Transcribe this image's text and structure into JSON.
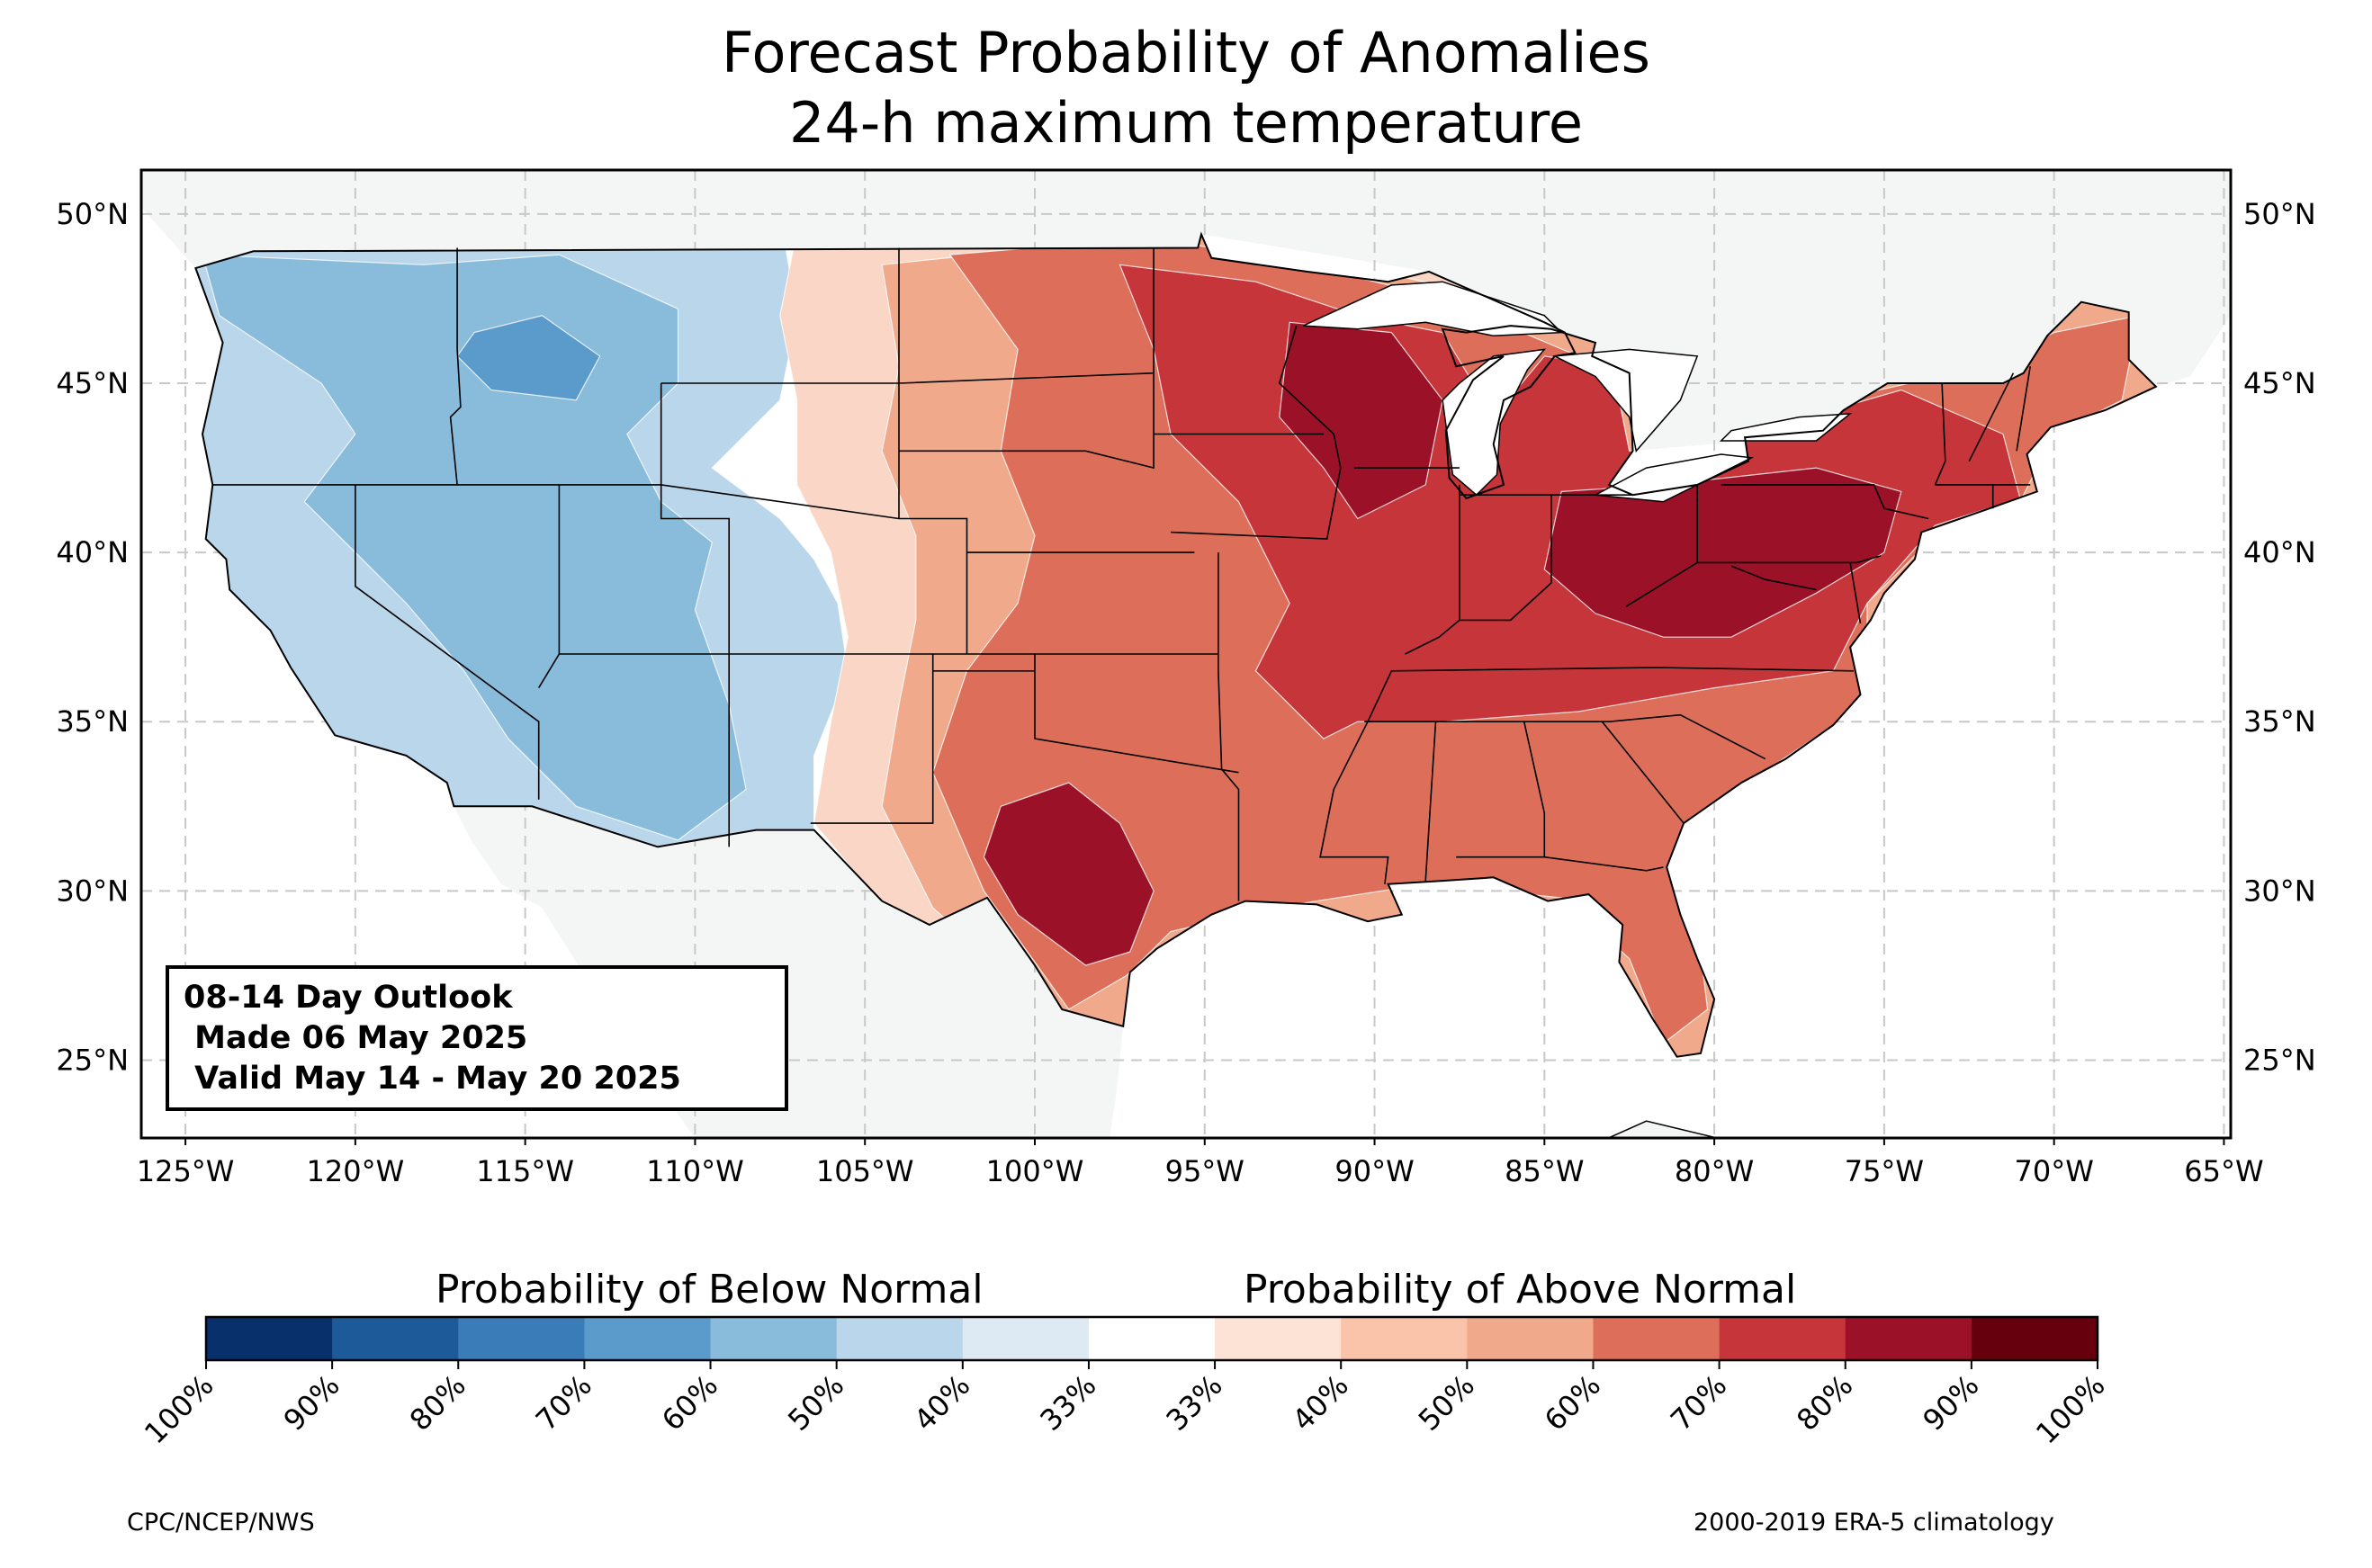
{
  "title": {
    "line1": "Forecast Probability of Anomalies",
    "line2": "24-h maximum temperature"
  },
  "map": {
    "lon_range": [
      -126.3,
      -64.8
    ],
    "lat_range": [
      22.7,
      51.3
    ],
    "lon_ticks": [
      -125,
      -120,
      -115,
      -110,
      -105,
      -100,
      -95,
      -90,
      -85,
      -80,
      -75,
      -70,
      -65
    ],
    "lon_tick_labels": [
      "125°W",
      "120°W",
      "115°W",
      "110°W",
      "105°W",
      "100°W",
      "95°W",
      "90°W",
      "85°W",
      "80°W",
      "75°W",
      "70°W",
      "65°W"
    ],
    "lat_ticks": [
      50,
      45,
      40,
      35,
      30,
      25
    ],
    "lat_tick_labels": [
      "50°N",
      "45°N",
      "40°N",
      "35°N",
      "30°N",
      "25°N"
    ],
    "gridlines": "dashed",
    "colors": {
      "land_outside": "#f4f6f5",
      "ocean": "#ffffff",
      "below_50": "#b9d6ea",
      "below_60": "#89bbdb",
      "below_70": "#5a9bcb",
      "above_40": "#f9d6c5",
      "above_50": "#f0a98b",
      "above_60": "#dd6f5a",
      "above_70": "#c5353a",
      "above_80": "#9b1228"
    },
    "regions": [
      {
        "name": "below-west",
        "category": "below_50"
      },
      {
        "name": "below-intermountain",
        "category": "below_60"
      },
      {
        "name": "below-core-arizona",
        "category": "below_70"
      },
      {
        "name": "above-plains-edge",
        "category": "above_40"
      },
      {
        "name": "above-plains",
        "category": "above_50"
      },
      {
        "name": "above-central-east",
        "category": "above_60"
      },
      {
        "name": "above-core",
        "category": "above_70"
      },
      {
        "name": "above-max-texas",
        "category": "above_80"
      },
      {
        "name": "above-max-midwest",
        "category": "above_80"
      },
      {
        "name": "above-max-ohio-valley",
        "category": "above_80"
      }
    ]
  },
  "infobox": {
    "line1": "08-14 Day Outlook",
    "line2": " Made 06 May 2025",
    "line3": " Valid May 14 - May 20 2025"
  },
  "colorbar": {
    "below_title": "Probability of Below Normal",
    "above_title": "Probability of Above Normal",
    "colors": [
      "#08306b",
      "#1c5a99",
      "#3a7cb8",
      "#5a9bcb",
      "#89bbdb",
      "#b9d6ea",
      "#dde9f3",
      "#ffffff",
      "#fde3d6",
      "#f9c4aa",
      "#f0a98b",
      "#dd6f5a",
      "#c5353a",
      "#9b1228",
      "#67000d"
    ],
    "labels": [
      "100%",
      "90%",
      "80%",
      "70%",
      "60%",
      "50%",
      "40%",
      "33%",
      "33%",
      "40%",
      "50%",
      "60%",
      "70%",
      "80%",
      "90%",
      "100%"
    ]
  },
  "footer": {
    "left": "CPC/NCEP/NWS",
    "right": "2000-2019 ERA-5 climatology"
  }
}
